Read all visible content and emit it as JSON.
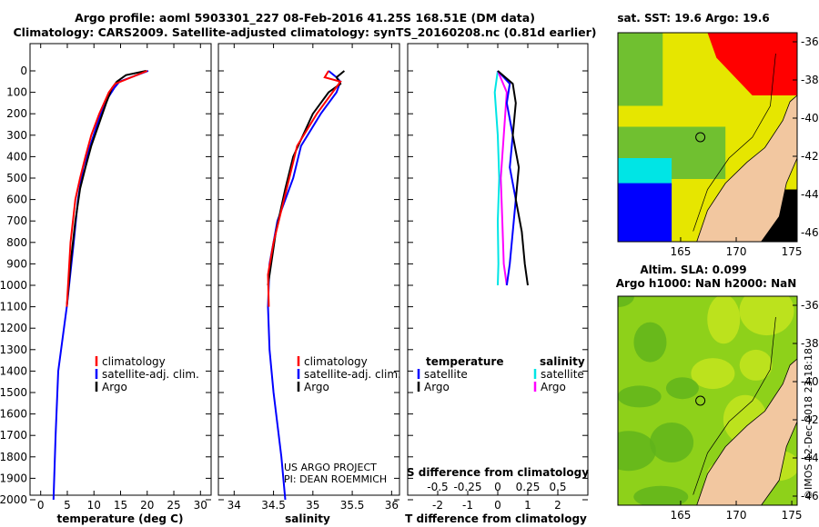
{
  "title_line1": "Argo profile: aoml 5903301_227 08-Feb-2016 41.25S 168.51E (DM data)",
  "title_line2": "Climatology: CARS2009. Satellite-adjusted climatology: synTS_20160208.nc (0.81d earlier)",
  "colors": {
    "climatology": "#ff0000",
    "satellite": "#0000ff",
    "argo": "#000000",
    "sat_salinity": "#00e5e5",
    "argo_salinity": "#ff00ff"
  },
  "depth_ticks": [
    "0",
    "100",
    "200",
    "300",
    "400",
    "500",
    "600",
    "700",
    "800",
    "900",
    "1000",
    "1100",
    "1200",
    "1300",
    "1400",
    "1500",
    "1600",
    "1700",
    "1800",
    "1900",
    "2000"
  ],
  "temp_panel": {
    "xlabel": "temperature (deg C)",
    "xticks": [
      "0",
      "5",
      "10",
      "15",
      "20",
      "25",
      "30"
    ],
    "legend": [
      "climatology",
      "satellite-adj. clim.",
      "Argo"
    ]
  },
  "sal_panel": {
    "xlabel": "salinity",
    "xticks": [
      "34",
      "34.5",
      "35",
      "35.5",
      "36"
    ],
    "legend": [
      "climatology",
      "satellite-adj. clim.",
      "Argo"
    ],
    "credit1": "US ARGO PROJECT",
    "credit2": "PI: DEAN ROEMMICH"
  },
  "diff_panel": {
    "xlabel": "T difference from climatology",
    "xticks": [
      "-2",
      "-1",
      "0",
      "1",
      "2"
    ],
    "s_label": "S difference from climatology",
    "s_ticks": [
      "-0.5",
      "-0.25",
      "0",
      "0.25",
      "0.5"
    ],
    "legend_temp_title": "temperature",
    "legend_sal_title": "salinity",
    "legend_temp": [
      "satellite",
      "Argo"
    ],
    "legend_sal": [
      "satellite",
      "Argo"
    ]
  },
  "sst_map": {
    "title": "sat. SST: 19.6 Argo: 19.6",
    "lat_ticks": [
      "-36",
      "-38",
      "-40",
      "-42",
      "-44",
      "-46"
    ],
    "lon_ticks": [
      "165",
      "170",
      "175"
    ]
  },
  "sla_map": {
    "title1": "Altim. SLA: 0.099",
    "title2": "Argo h1000: NaN h2000: NaN",
    "lat_ticks": [
      "-36",
      "-38",
      "-40",
      "-42",
      "-44",
      "-46"
    ],
    "lon_ticks": [
      "165",
      "170",
      "175"
    ]
  },
  "watermark": "©IMOS 12-Dec-2018 23:18:18",
  "chart_data": [
    {
      "type": "line",
      "title": "temperature profile",
      "xlabel": "temperature (deg C)",
      "ylabel": "depth",
      "xlim": [
        -2,
        32
      ],
      "ylim": [
        2050,
        0
      ],
      "series": [
        {
          "name": "climatology",
          "x": [
            20,
            14,
            12.8,
            11,
            9.5,
            8.4,
            7.4,
            6.5,
            5.6,
            4.9
          ],
          "y": [
            0,
            60,
            100,
            200,
            300,
            400,
            500,
            600,
            800,
            1100
          ]
        },
        {
          "name": "satellite-adj. clim.",
          "x": [
            20.2,
            14.8,
            13.8,
            12,
            10.6,
            9.3,
            8,
            7,
            6.2,
            4.9,
            3.3,
            2.8,
            2.4
          ],
          "y": [
            0,
            50,
            80,
            150,
            250,
            350,
            450,
            600,
            800,
            1100,
            1400,
            1700,
            2000
          ]
        },
        {
          "name": "Argo",
          "x": [
            19.8,
            16,
            14.3,
            13.4,
            12.3,
            10.9,
            9.5,
            8.4,
            7.4,
            6.5,
            5.6,
            4.9
          ],
          "y": [
            0,
            20,
            50,
            80,
            150,
            250,
            350,
            450,
            550,
            700,
            900,
            1100
          ]
        }
      ]
    },
    {
      "type": "line",
      "title": "salinity profile",
      "xlabel": "salinity",
      "ylabel": "depth",
      "xlim": [
        33.8,
        36.1
      ],
      "ylim": [
        2050,
        0
      ],
      "series": [
        {
          "name": "climatology",
          "x": [
            35.2,
            35.15,
            35.35,
            35.05,
            34.8,
            34.7,
            34.6,
            34.5,
            34.43,
            34.44
          ],
          "y": [
            0,
            30,
            50,
            200,
            350,
            500,
            650,
            800,
            950,
            1100
          ]
        },
        {
          "name": "satellite-adj. clim.",
          "x": [
            35.2,
            35.3,
            35.35,
            35.3,
            35.1,
            34.85,
            34.75,
            34.55,
            34.45,
            34.43,
            34.45,
            34.5,
            34.6,
            34.65
          ],
          "y": [
            0,
            30,
            50,
            100,
            200,
            350,
            500,
            700,
            900,
            1100,
            1300,
            1500,
            1800,
            2000
          ]
        },
        {
          "name": "Argo",
          "x": [
            35.4,
            35.3,
            35.35,
            35.2,
            35.0,
            34.75,
            34.65,
            34.53,
            34.43
          ],
          "y": [
            0,
            30,
            60,
            100,
            200,
            400,
            550,
            750,
            1000
          ]
        }
      ]
    },
    {
      "type": "line",
      "title": "difference from climatology",
      "xlabel": "T difference from climatology",
      "ylabel": "depth",
      "xlim": [
        -3,
        3
      ],
      "ylim": [
        2050,
        0
      ],
      "series": [
        {
          "name": "temperature satellite",
          "x": [
            0,
            0.4,
            0.3,
            0.5,
            0.4,
            0.6,
            0.5,
            0.4,
            0.3
          ],
          "y": [
            0,
            60,
            150,
            300,
            450,
            600,
            750,
            900,
            1000
          ]
        },
        {
          "name": "temperature Argo",
          "x": [
            0,
            0.5,
            0.6,
            0.5,
            0.7,
            0.6,
            0.8,
            0.9,
            1
          ],
          "y": [
            0,
            60,
            150,
            300,
            450,
            600,
            750,
            900,
            1000
          ]
        },
        {
          "name": "salinity satellite",
          "x": [
            0,
            -0.1,
            0,
            0.05,
            0,
            0.02,
            0
          ],
          "y": [
            0,
            100,
            300,
            500,
            700,
            900,
            1000
          ]
        },
        {
          "name": "salinity Argo",
          "x": [
            0,
            0.3,
            0.2,
            0.1,
            0.15,
            0.2,
            0.3
          ],
          "y": [
            0,
            100,
            300,
            500,
            700,
            900,
            1000
          ]
        }
      ]
    }
  ]
}
